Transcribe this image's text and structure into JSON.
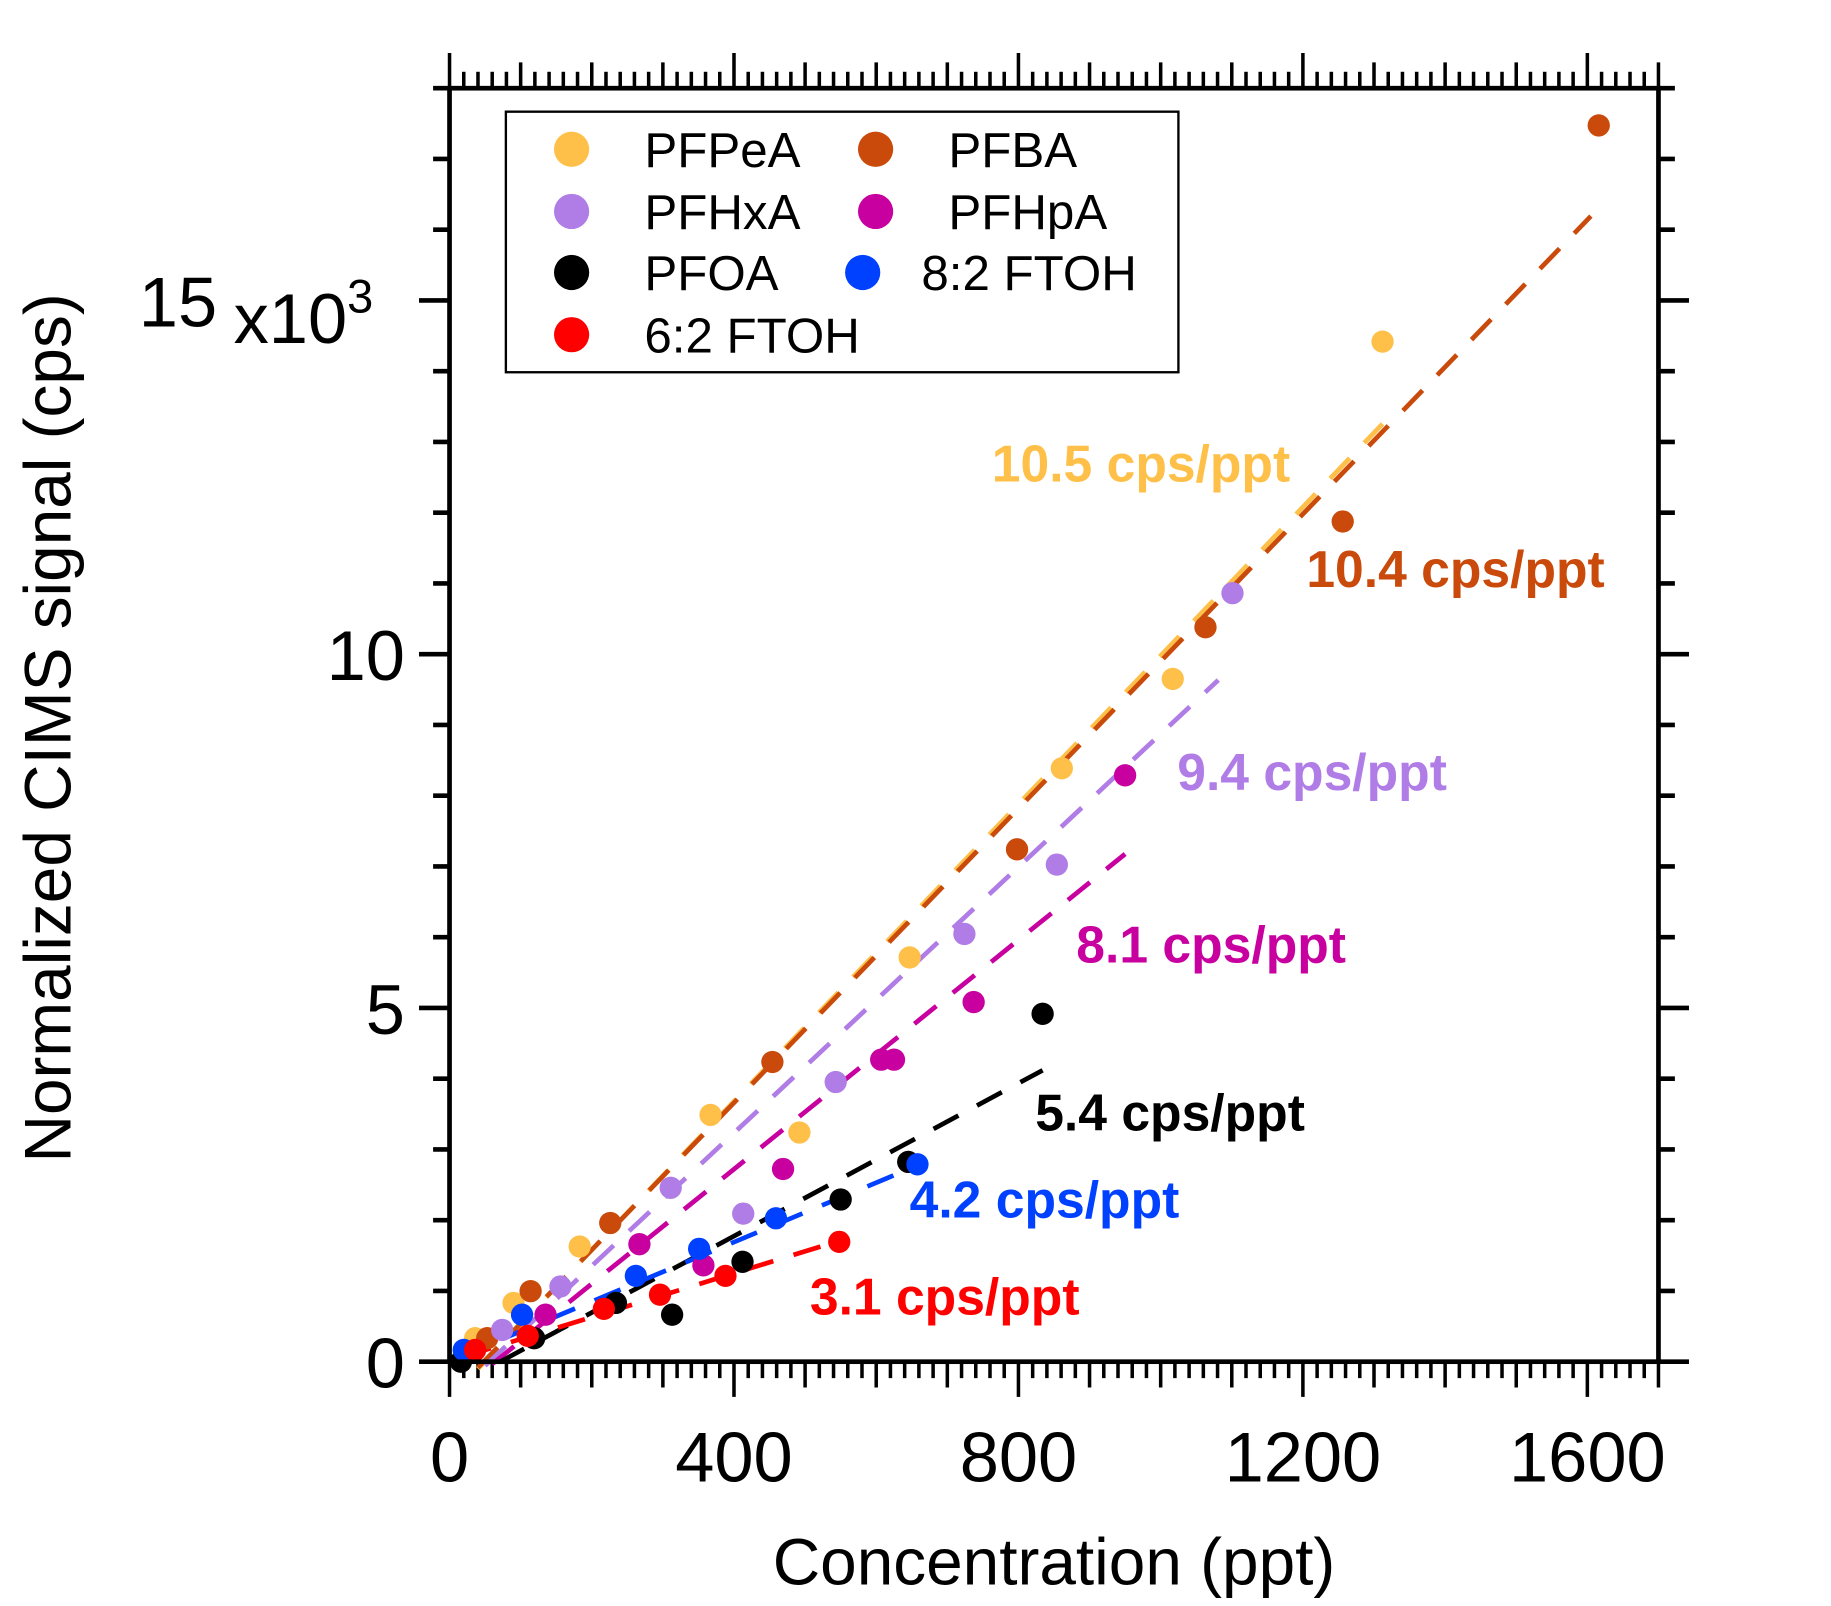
{
  "chart_data": {
    "type": "scatter",
    "xlabel": "Concentration (ppt)",
    "ylabel": "Normalized CIMS signal (cps)",
    "y_multiplier_label": "x10",
    "y_multiplier_exp": "3",
    "xlim": [
      0,
      1700
    ],
    "ylim": [
      0,
      18000
    ],
    "xticks": [
      0,
      400,
      800,
      1200,
      1600
    ],
    "xtick_labels": [
      "0",
      "400",
      "800",
      "1200",
      "1600"
    ],
    "yticks": [
      0,
      5000,
      10000,
      15000
    ],
    "ytick_labels": [
      "0",
      "5",
      "10",
      "15"
    ],
    "grid": false,
    "legend_placement": "top-left",
    "series": [
      {
        "name": "PFPeA",
        "color": "#FFC04A",
        "slope_label": "10.5 cps/ppt",
        "slope": 10.5,
        "intercept": -520,
        "fit_x": [
          40,
          1312
        ],
        "x": [
          36,
          90,
          183,
          367,
          492,
          647,
          861,
          1017,
          1312
        ],
        "y": [
          332,
          830,
          1628,
          3488,
          3239,
          5714,
          8388,
          9651,
          14418
        ]
      },
      {
        "name": "PFBA",
        "color": "#C94A0A",
        "slope_label": "10.4 cps/ppt",
        "slope": 10.4,
        "intercept": -500,
        "fit_x": [
          40,
          1605
        ],
        "x": [
          53,
          114,
          226,
          454,
          798,
          1063,
          1256,
          1616
        ],
        "y": [
          332,
          997,
          1960,
          4236,
          7242,
          10381,
          11876,
          17474
        ]
      },
      {
        "name": "PFHxA",
        "color": "#B07CE6",
        "slope_label": "9.4 cps/ppt",
        "slope": 9.4,
        "intercept": -527,
        "fit_x": [
          50,
          1081
        ],
        "x": [
          74,
          156,
          311,
          413,
          543,
          724,
          854,
          1101
        ],
        "y": [
          449,
          1063,
          2458,
          2093,
          3953,
          6046,
          7026,
          10863
        ]
      },
      {
        "name": "PFHpA",
        "color": "#C800A0",
        "slope_label": "8.1 cps/ppt",
        "slope": 8.1,
        "intercept": -519,
        "fit_x": [
          60,
          950
        ],
        "x": [
          135,
          267,
          357,
          469,
          607,
          625,
          737,
          950
        ],
        "y": [
          664,
          1661,
          1362,
          2724,
          4269,
          4269,
          5083,
          8288
        ]
      },
      {
        "name": "PFOA",
        "color": "#000000",
        "slope_label": "5.4 cps/ppt",
        "slope": 5.4,
        "intercept": -385,
        "fit_x": [
          70,
          834
        ],
        "x": [
          16,
          119,
          234,
          313,
          412,
          550,
          645,
          834
        ],
        "y": [
          0,
          332,
          831,
          664,
          1412,
          2292,
          2824,
          4917
        ]
      },
      {
        "name": "8:2 FTOH",
        "color": "#0040FF",
        "slope_label": "4.2 cps/ppt",
        "slope": 4.2,
        "intercept": 10,
        "fit_x": [
          12,
          670
        ],
        "x": [
          20,
          102,
          262,
          351,
          459,
          658
        ],
        "y": [
          166,
          664,
          1213,
          1595,
          2027,
          2790
        ]
      },
      {
        "name": "6:2 FTOH",
        "color": "#FF0000",
        "slope_label": "3.1 cps/ppt",
        "slope": 3.1,
        "intercept": 10,
        "fit_x": [
          20,
          522
        ],
        "x": [
          36,
          110,
          217,
          296,
          388,
          548
        ],
        "y": [
          166,
          365,
          747,
          947,
          1213,
          1694
        ]
      }
    ]
  }
}
